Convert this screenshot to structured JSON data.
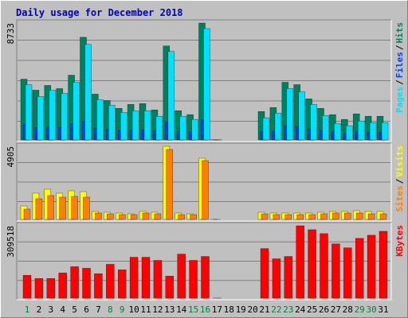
{
  "chart_data": {
    "type": "bar",
    "title": "Daily usage for December 2018",
    "title_color": "#0000c0",
    "legend_separator": "/",
    "categories": [
      "1",
      "2",
      "3",
      "4",
      "5",
      "6",
      "7",
      "8",
      "9",
      "10",
      "11",
      "12",
      "13",
      "14",
      "15",
      "16",
      "17",
      "18",
      "19",
      "20",
      "21",
      "22",
      "23",
      "24",
      "25",
      "26",
      "27",
      "28",
      "29",
      "30",
      "31"
    ],
    "category_colors": [
      "#008040",
      "#000000",
      "#000000",
      "#000000",
      "#000000",
      "#000000",
      "#000000",
      "#008040",
      "#008040",
      "#000000",
      "#000000",
      "#000000",
      "#000000",
      "#000000",
      "#008040",
      "#008040",
      "#000000",
      "#000000",
      "#000000",
      "#000000",
      "#000000",
      "#008040",
      "#008040",
      "#000000",
      "#000000",
      "#000000",
      "#000000",
      "#000000",
      "#008040",
      "#008040",
      "#000000"
    ],
    "panels": [
      {
        "ylim": [
          0,
          8733
        ],
        "yticks": [
          8733
        ],
        "grid_divisions": 6,
        "series": [
          {
            "name": "Hits",
            "color": "#00805c",
            "values": [
              4543,
              3717,
              4071,
              3835,
              4838,
              7671,
              3422,
              2950,
              2360,
              2655,
              2714,
              2242,
              7021,
              2183,
              1888,
              8733,
              12,
              0,
              0,
              0,
              2124,
              2419,
              4307,
              4130,
              3068,
              2360,
              1888,
              1534,
              1947,
              1770,
              1770
            ]
          },
          {
            "name": "Files",
            "color": "#0040ff",
            "values": [
              1180,
              900,
              1000,
              950,
              1200,
              1400,
              850,
              780,
              700,
              720,
              740,
              680,
              1350,
              650,
              600,
              1500,
              8,
              0,
              0,
              0,
              600,
              650,
              1050,
              1000,
              800,
              700,
              600,
              520,
              620,
              560,
              560
            ]
          },
          {
            "name": "Pages",
            "color": "#00e0ff",
            "values": [
              4130,
              3245,
              3717,
              3481,
              4307,
              7140,
              3009,
              2596,
              2065,
              2183,
              2183,
              1770,
              6609,
              1770,
              1534,
              8320,
              10,
              0,
              0,
              0,
              1652,
              2006,
              3835,
              3599,
              2655,
              1829,
              1239,
              1062,
              1416,
              1298,
              1298
            ]
          }
        ]
      },
      {
        "ylim": [
          0,
          4905
        ],
        "yticks": [
          4905
        ],
        "grid_divisions": 4,
        "series": [
          {
            "name": "Visits",
            "color": "#ffff00",
            "values": [
              906,
              1759,
              2026,
              1759,
              1919,
              1866,
              533,
              480,
              427,
              373,
              533,
              480,
              4905,
              427,
              373,
              4105,
              1,
              0,
              0,
              0,
              480,
              427,
              427,
              427,
              427,
              480,
              533,
              533,
              586,
              533,
              533
            ]
          },
          {
            "name": "Sites",
            "color": "#ff8000",
            "values": [
              693,
              1386,
              1599,
              1493,
              1546,
              1493,
              427,
              373,
              320,
              320,
              427,
              373,
              4692,
              320,
              320,
              3945,
              1,
              0,
              0,
              0,
              373,
              320,
              320,
              320,
              320,
              373,
              427,
              427,
              427,
              373,
              373
            ]
          }
        ]
      },
      {
        "ylim": [
          0,
          309518
        ],
        "yticks": [
          309518
        ],
        "grid_divisions": 4,
        "series": [
          {
            "name": "KBytes",
            "color": "#ff0000",
            "values": [
              97575,
              84116,
              84116,
              107660,
              134575,
              127846,
              104297,
              144668,
              121117,
              174957,
              174957,
              161498,
              94206,
              188415,
              161498,
              178321,
              300,
              0,
              0,
              0,
              211966,
              168227,
              178321,
              309518,
              292716,
              275894,
              232155,
              215331,
              255705,
              269163,
              285987
            ]
          }
        ]
      }
    ]
  }
}
